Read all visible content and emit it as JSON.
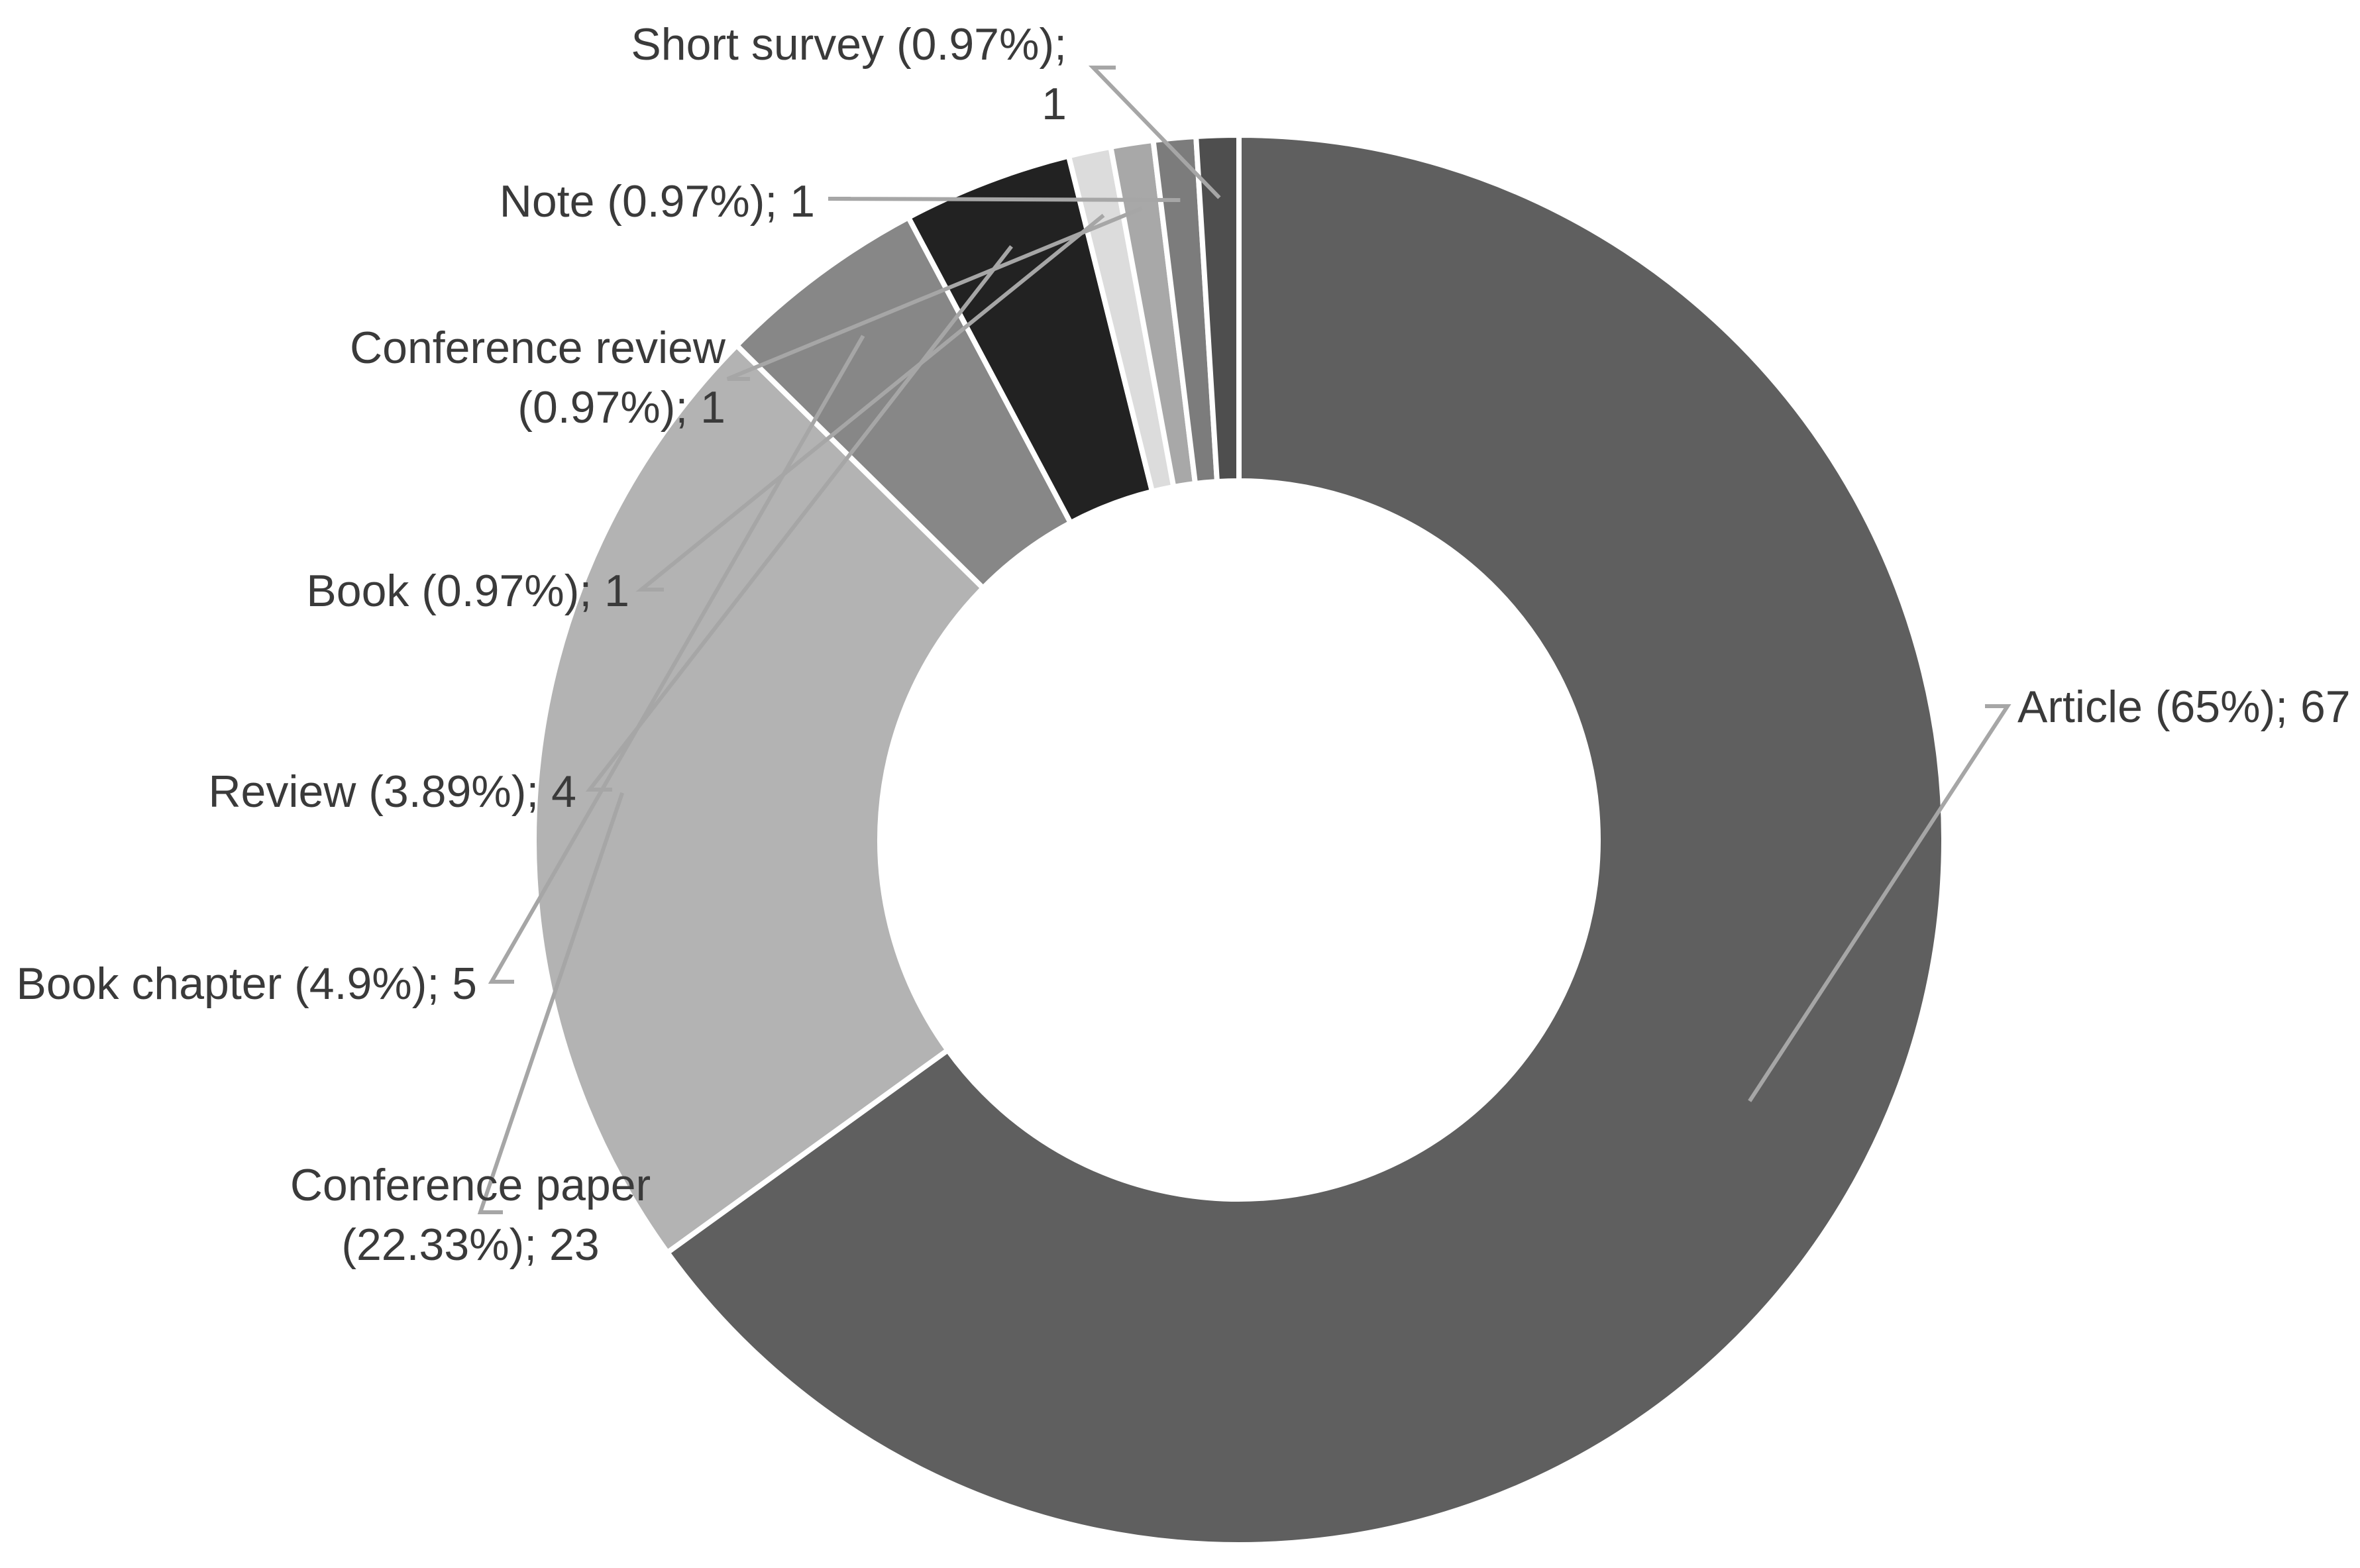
{
  "chart_data": {
    "type": "pie",
    "variant": "donut",
    "title": "",
    "series": [
      {
        "name": "",
        "slices": [
          {
            "category": "Article",
            "percent": 65,
            "value": 67,
            "color": "#5f5f5f",
            "label_lines": [
              "Article (65%); 67"
            ]
          },
          {
            "category": "Conference paper",
            "percent": 22.33,
            "value": 23,
            "color": "#b3b3b3",
            "label_lines": [
              "Conference paper",
              "(22.33%); 23"
            ]
          },
          {
            "category": "Book chapter",
            "percent": 4.9,
            "value": 5,
            "color": "#878787",
            "label_lines": [
              "Book chapter (4.9%); 5"
            ]
          },
          {
            "category": "Review",
            "percent": 3.89,
            "value": 4,
            "color": "#222222",
            "label_lines": [
              "Review (3.89%); 4"
            ]
          },
          {
            "category": "Book",
            "percent": 0.97,
            "value": 1,
            "color": "#dcdcdc",
            "label_lines": [
              "Book (0.97%); 1"
            ]
          },
          {
            "category": "Conference review",
            "percent": 0.97,
            "value": 1,
            "color": "#a8a8a8",
            "label_lines": [
              "Conference review",
              "(0.97%); 1"
            ]
          },
          {
            "category": "Note",
            "percent": 0.97,
            "value": 1,
            "color": "#7c7c7c",
            "label_lines": [
              "Note (0.97%); 1"
            ]
          },
          {
            "category": "Short survey",
            "percent": 0.97,
            "value": 1,
            "color": "#4e4e4e",
            "label_lines": [
              "Short survey (0.97%);",
              "1"
            ]
          }
        ]
      }
    ],
    "legend": "none",
    "colors": {
      "separator": "#ffffff",
      "leader_line": "#a6a6a6",
      "label_text": "#3a3a3a"
    }
  }
}
